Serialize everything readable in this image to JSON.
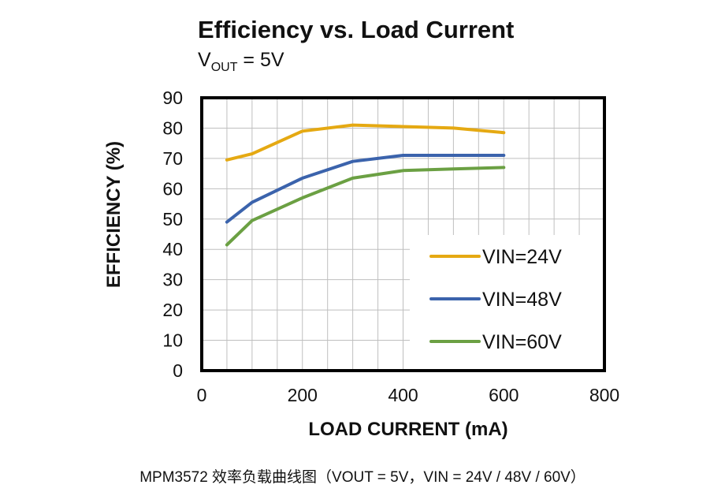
{
  "chart_data": {
    "type": "line",
    "title": "Efficiency vs. Load Current",
    "subtitle": {
      "prefix": "V",
      "subscript": "OUT",
      "suffix": " = 5V"
    },
    "xlabel": "LOAD CURRENT (mA)",
    "ylabel": "EFFICIENCY (%)",
    "xlim": [
      0,
      800
    ],
    "ylim": [
      0,
      90
    ],
    "x_ticks": [
      0,
      200,
      400,
      600,
      800
    ],
    "y_ticks": [
      0,
      10,
      20,
      30,
      40,
      50,
      60,
      70,
      80,
      90
    ],
    "grid": true,
    "legend_position": "bottom-right",
    "series": [
      {
        "name": "VIN=24V",
        "color": "#E5A912",
        "x": [
          50,
          100,
          200,
          300,
          400,
          500,
          600
        ],
        "y": [
          69.5,
          71.5,
          79,
          81,
          80.5,
          80,
          78.5
        ]
      },
      {
        "name": "VIN=48V",
        "color": "#3B63AC",
        "x": [
          50,
          100,
          200,
          300,
          400,
          500,
          600
        ],
        "y": [
          49,
          55.5,
          63.5,
          69,
          71,
          71,
          71
        ]
      },
      {
        "name": "VIN=60V",
        "color": "#6BA043",
        "x": [
          50,
          100,
          200,
          300,
          400,
          500,
          600
        ],
        "y": [
          41.5,
          49.5,
          57,
          63.5,
          66,
          66.5,
          67
        ]
      }
    ]
  },
  "caption": "MPM3572 效率负载曲线图（VOUT = 5V，VIN = 24V / 48V / 60V）"
}
